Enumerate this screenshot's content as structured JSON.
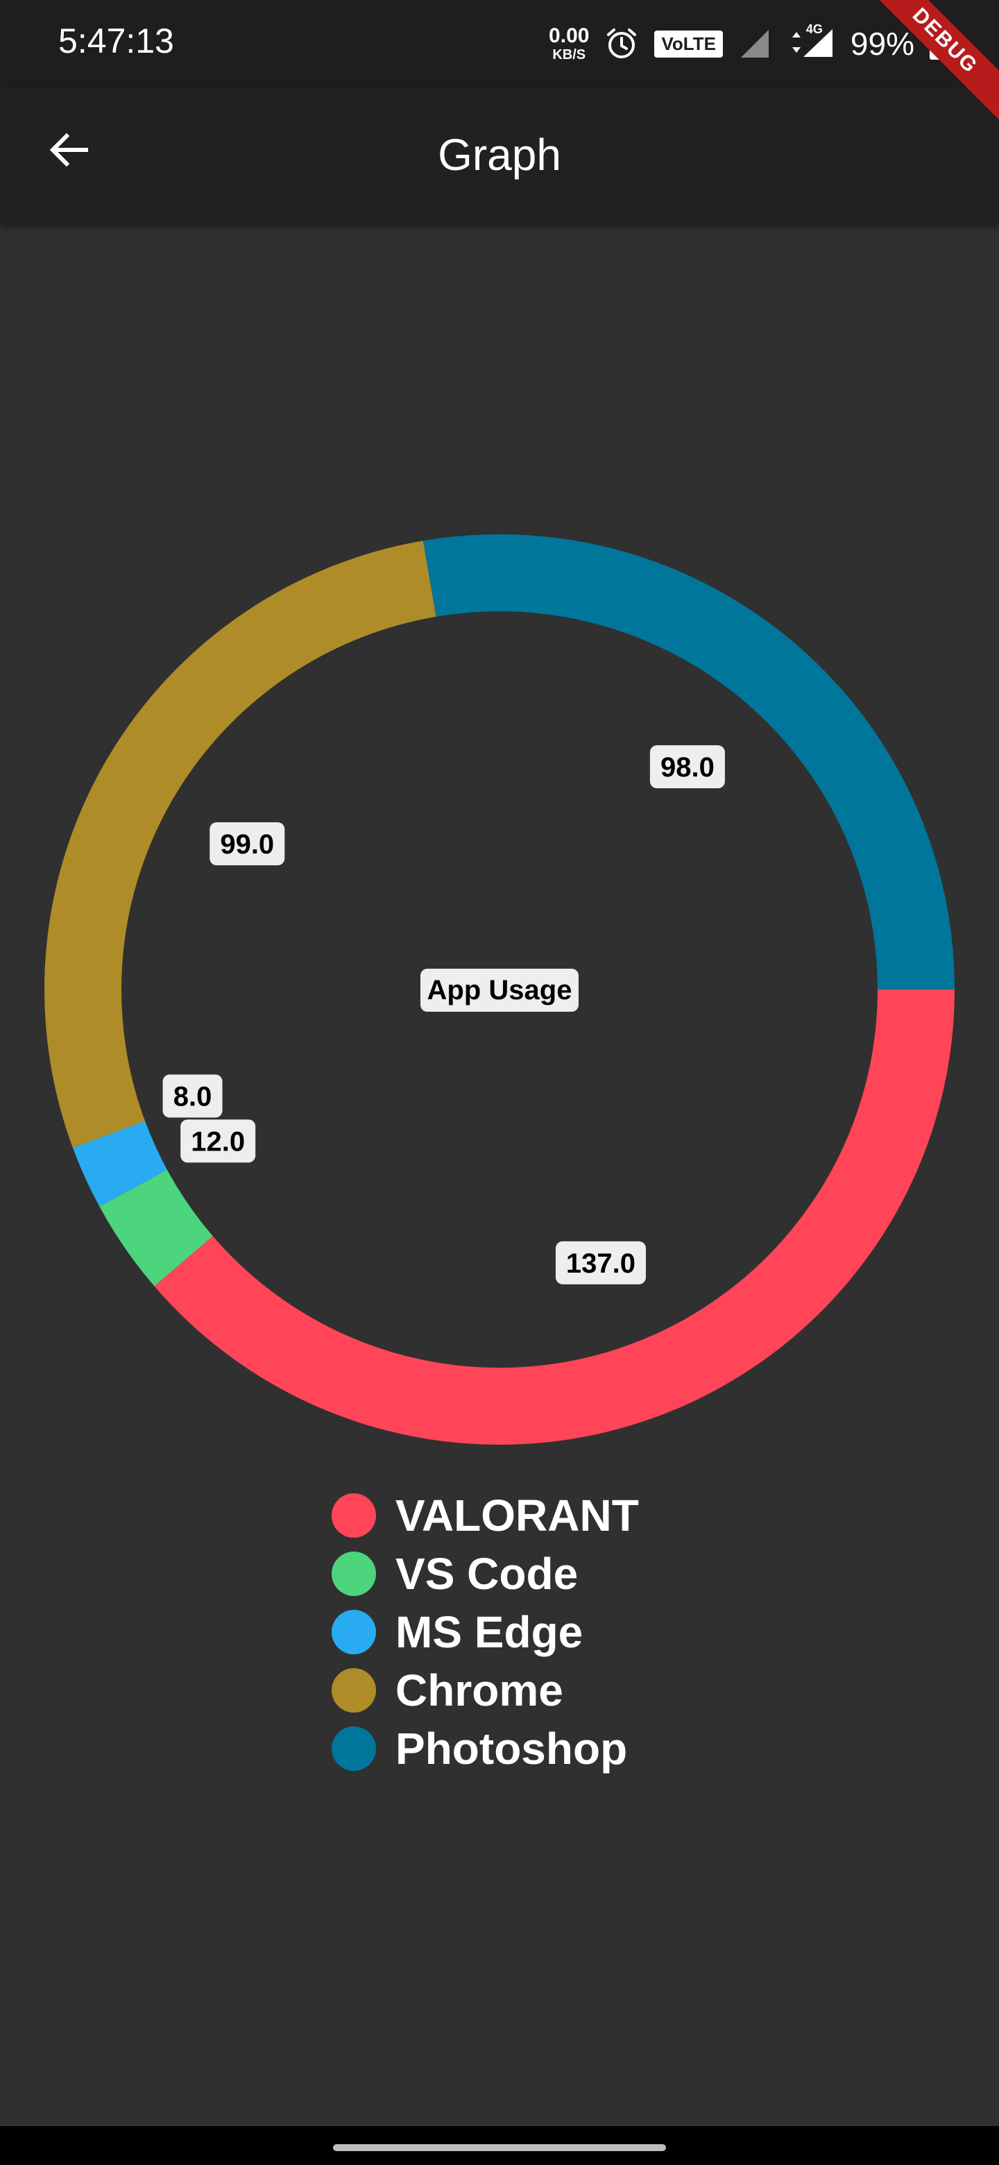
{
  "status_bar": {
    "time": "5:47:13",
    "net_speed_value": "0.00",
    "net_speed_unit": "KB/S",
    "volte": "VoLTE",
    "network": "4G",
    "battery": "99%",
    "icons": [
      "alarm-icon",
      "signal-icon",
      "data-arrows-icon",
      "battery-icon"
    ]
  },
  "debug_banner": "DEBUG",
  "app_bar": {
    "title": "Graph",
    "back_icon": "arrow-left-icon"
  },
  "colors": {
    "background": "#303030",
    "app_bar": "#212121",
    "label_bg": "#eeeeee",
    "label_text": "#000000"
  },
  "chart_data": {
    "type": "pie",
    "donut": true,
    "center_text": "App Usage",
    "categories": [
      "VALORANT",
      "VS Code",
      "MS Edge",
      "Chrome",
      "Photoshop"
    ],
    "values": [
      137.0,
      12.0,
      8.0,
      99.0,
      98.0
    ],
    "value_labels": [
      "137.0",
      "12.0",
      "8.0",
      "99.0",
      "98.0"
    ],
    "colors": [
      "#ff4557",
      "#4cd57c",
      "#29abf2",
      "#ae8c27",
      "#00769b"
    ],
    "start": "3 o'clock",
    "direction": "clockwise",
    "legend": {
      "position": "bottom",
      "items": [
        "VALORANT",
        "VS Code",
        "MS Edge",
        "Chrome",
        "Photoshop"
      ]
    }
  }
}
